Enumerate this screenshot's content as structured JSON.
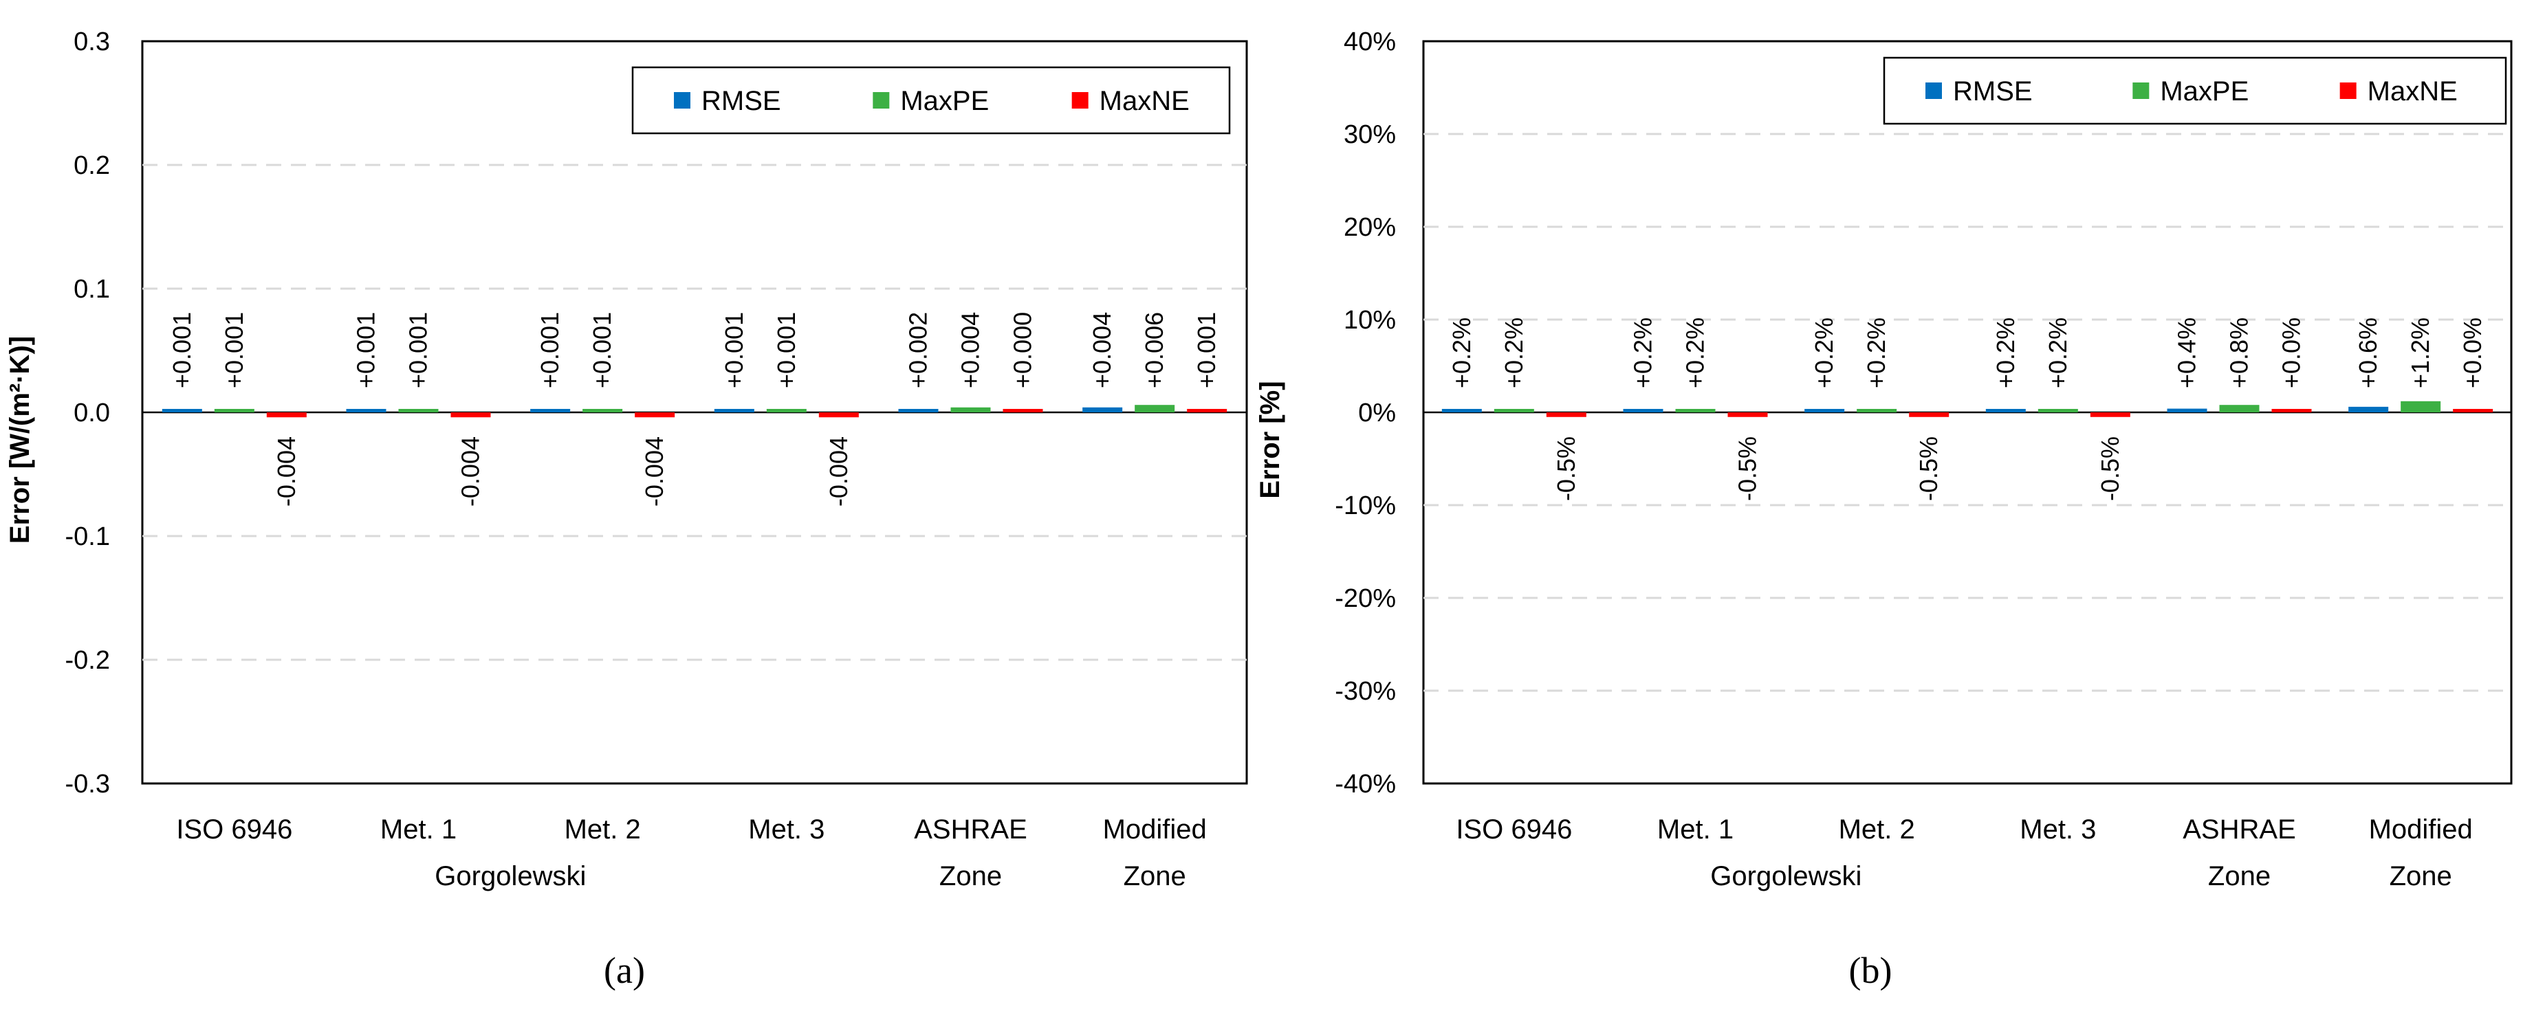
{
  "colors": {
    "RMSE": "#0070c0",
    "MaxPE": "#3cb043",
    "MaxNE": "#ff0000",
    "grid": "#d9d9d9",
    "axis": "#000000"
  },
  "chart_data": [
    {
      "id": "a",
      "panel_label": "(a)",
      "type": "bar",
      "ylabel": "Error [W/(m²·K)]",
      "ylim": [
        -0.3,
        0.3
      ],
      "yticks": [
        -0.3,
        -0.2,
        -0.1,
        0.0,
        0.1,
        0.2,
        0.3
      ],
      "ytick_labels": [
        "-0.3",
        "-0.2",
        "-0.1",
        "0.0",
        "0.1",
        "0.2",
        "0.3"
      ],
      "grid": true,
      "legend_position": "top-right",
      "categories": [
        [
          "ISO 6946"
        ],
        [
          "Met. 1"
        ],
        [
          "Met. 2"
        ],
        [
          "Met. 3"
        ],
        [
          "ASHRAE",
          "Zone"
        ],
        [
          "Modified",
          "Zone"
        ]
      ],
      "group_label": "Gorgolewski",
      "series": [
        {
          "name": "RMSE",
          "values": [
            0.001,
            0.001,
            0.001,
            0.001,
            0.002,
            0.004
          ],
          "labels": [
            "+0.001",
            "+0.001",
            "+0.001",
            "+0.001",
            "+0.002",
            "+0.004"
          ]
        },
        {
          "name": "MaxPE",
          "values": [
            0.001,
            0.001,
            0.001,
            0.001,
            0.004,
            0.006
          ],
          "labels": [
            "+0.001",
            "+0.001",
            "+0.001",
            "+0.001",
            "+0.004",
            "+0.006"
          ]
        },
        {
          "name": "MaxNE",
          "values": [
            -0.004,
            -0.004,
            -0.004,
            -0.004,
            0.0,
            0.001
          ],
          "labels": [
            "-0.004",
            "-0.004",
            "-0.004",
            "-0.004",
            "+0.000",
            "+0.001"
          ]
        }
      ]
    },
    {
      "id": "b",
      "panel_label": "(b)",
      "type": "bar",
      "ylabel": "Error [%]",
      "ylim": [
        -40,
        40
      ],
      "yticks": [
        -40,
        -30,
        -20,
        -10,
        0,
        10,
        20,
        30,
        40
      ],
      "ytick_labels": [
        "-40%",
        "-30%",
        "-20%",
        "-10%",
        "0%",
        "10%",
        "20%",
        "30%",
        "40%"
      ],
      "grid": true,
      "legend_position": "top-right",
      "categories": [
        [
          "ISO 6946"
        ],
        [
          "Met. 1"
        ],
        [
          "Met. 2"
        ],
        [
          "Met. 3"
        ],
        [
          "ASHRAE",
          "Zone"
        ],
        [
          "Modified",
          "Zone"
        ]
      ],
      "group_label": "Gorgolewski",
      "series": [
        {
          "name": "RMSE",
          "values": [
            0.2,
            0.2,
            0.2,
            0.2,
            0.4,
            0.6
          ],
          "labels": [
            "+0.2%",
            "+0.2%",
            "+0.2%",
            "+0.2%",
            "+0.4%",
            "+0.6%"
          ]
        },
        {
          "name": "MaxPE",
          "values": [
            0.2,
            0.2,
            0.2,
            0.2,
            0.8,
            1.2
          ],
          "labels": [
            "+0.2%",
            "+0.2%",
            "+0.2%",
            "+0.2%",
            "+0.8%",
            "+1.2%"
          ]
        },
        {
          "name": "MaxNE",
          "values": [
            -0.5,
            -0.5,
            -0.5,
            -0.5,
            0.0,
            0.0
          ],
          "labels": [
            "-0.5%",
            "-0.5%",
            "-0.5%",
            "-0.5%",
            "+0.0%",
            "+0.0%"
          ]
        }
      ]
    }
  ]
}
